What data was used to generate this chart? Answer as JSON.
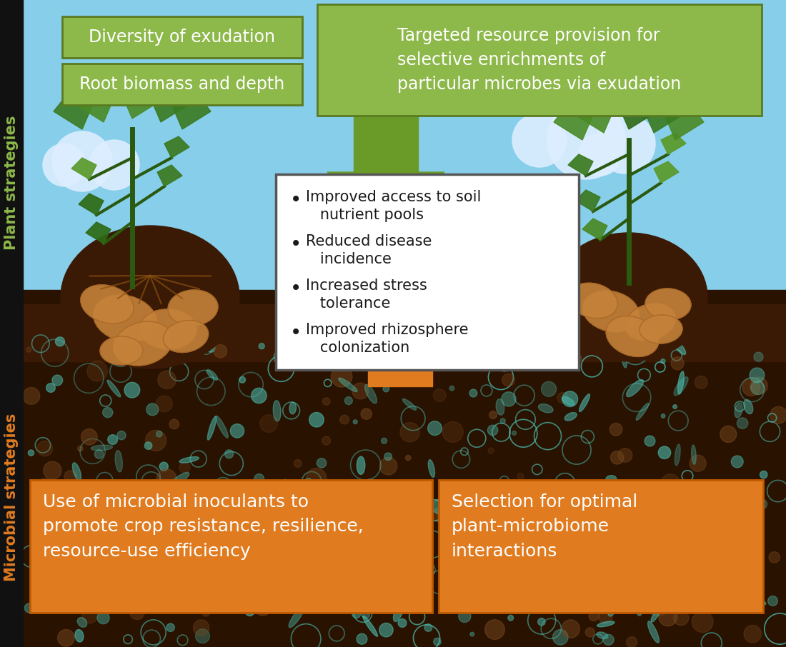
{
  "bg_sky_top": "#87CEEB",
  "bg_sky_bottom": "#5bb8d4",
  "soil_dark": "#2a1200",
  "soil_dark2": "#3d1c02",
  "sidebar_color": "#111111",
  "green_box_fill": "#8db84a",
  "green_box_edge": "#5a7a20",
  "orange_box_fill": "#e07b20",
  "orange_box_edge": "#c05a00",
  "white_box_fill": "#ffffff",
  "white_box_edge": "#555555",
  "green_arrow_color": "#6a9a28",
  "orange_arrow_color": "#e07b20",
  "plant_label_color": "#8db84a",
  "microbial_label_color": "#e07b20",
  "text_white": "#ffffff",
  "text_dark": "#1a1a1a",
  "cloud_color": "#ddeeff",
  "teal_micro": "#4abcb0",
  "green_box1": "Diversity of exudation",
  "green_box2": "Root biomass and depth",
  "green_box3": "Targeted resource provision for\nselective enrichments of\nparticular microbes via exudation",
  "bullets": [
    "Improved access to soil\n   nutrient pools",
    "Reduced disease\n   incidence",
    "Increased stress\n   tolerance",
    "Improved rhizosphere\n   colonization"
  ],
  "orange_box1": "Use of microbial inoculants to\npromote crop resistance, resilience,\nresource-use efficiency",
  "orange_box2": "Selection for optimal\nplant-microbiome\ninteractions",
  "label_top": "Plant strategies",
  "label_bottom": "Microbial strategies"
}
